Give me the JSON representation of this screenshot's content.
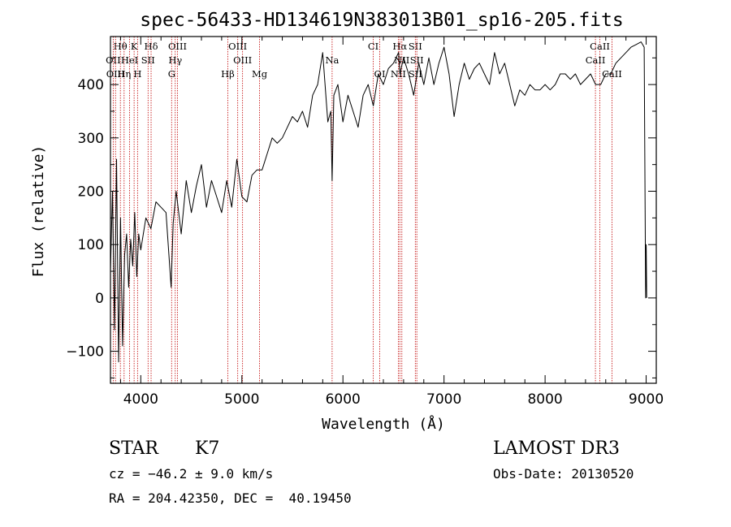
{
  "chart_data": {
    "type": "line",
    "title": "spec-56433-HD134619N383013B01_sp16-205.fits",
    "xlabel": "Wavelength (Å)",
    "ylabel": "Flux (relative)",
    "xlim": [
      3700,
      9100
    ],
    "ylim": [
      -160,
      490
    ],
    "x_ticks": [
      4000,
      5000,
      6000,
      7000,
      8000,
      9000
    ],
    "x_tick_labels": [
      "4000",
      "5000",
      "6000",
      "7000",
      "8000",
      "9000"
    ],
    "y_ticks": [
      -100,
      0,
      100,
      200,
      300,
      400
    ],
    "y_tick_labels": [
      "−100",
      "0",
      "100",
      "200",
      "300",
      "400"
    ],
    "series": [
      {
        "name": "flux",
        "color": "#000000",
        "x": [
          3700,
          3720,
          3740,
          3760,
          3780,
          3800,
          3820,
          3840,
          3860,
          3880,
          3900,
          3920,
          3940,
          3960,
          3980,
          4000,
          4050,
          4100,
          4150,
          4200,
          4250,
          4300,
          4320,
          4350,
          4400,
          4450,
          4500,
          4550,
          4600,
          4650,
          4700,
          4750,
          4800,
          4850,
          4900,
          4950,
          5000,
          5050,
          5100,
          5150,
          5200,
          5250,
          5300,
          5350,
          5400,
          5450,
          5500,
          5550,
          5600,
          5650,
          5700,
          5750,
          5800,
          5850,
          5880,
          5893,
          5910,
          5950,
          6000,
          6050,
          6100,
          6150,
          6200,
          6250,
          6300,
          6350,
          6400,
          6450,
          6500,
          6550,
          6563,
          6600,
          6650,
          6700,
          6750,
          6800,
          6850,
          6900,
          6950,
          7000,
          7050,
          7100,
          7150,
          7200,
          7250,
          7300,
          7350,
          7400,
          7450,
          7500,
          7550,
          7600,
          7650,
          7700,
          7750,
          7800,
          7850,
          7900,
          7950,
          8000,
          8050,
          8100,
          8150,
          8200,
          8250,
          8300,
          8350,
          8400,
          8450,
          8500,
          8550,
          8600,
          8650,
          8700,
          8750,
          8800,
          8850,
          8900,
          8950,
          8980,
          8995,
          9000,
          9005
        ],
        "y": [
          50,
          200,
          -60,
          260,
          -120,
          150,
          -90,
          80,
          120,
          20,
          110,
          60,
          160,
          40,
          120,
          90,
          150,
          130,
          180,
          170,
          160,
          20,
          140,
          200,
          120,
          220,
          160,
          210,
          250,
          170,
          220,
          190,
          160,
          220,
          170,
          260,
          190,
          180,
          230,
          240,
          240,
          270,
          300,
          290,
          300,
          320,
          340,
          330,
          350,
          320,
          380,
          400,
          460,
          330,
          350,
          220,
          380,
          400,
          330,
          380,
          350,
          320,
          380,
          400,
          360,
          420,
          400,
          430,
          440,
          460,
          420,
          450,
          420,
          380,
          440,
          400,
          450,
          400,
          440,
          470,
          420,
          340,
          400,
          440,
          410,
          430,
          440,
          420,
          400,
          460,
          420,
          440,
          400,
          360,
          390,
          380,
          400,
          390,
          390,
          400,
          390,
          400,
          420,
          420,
          410,
          420,
          400,
          410,
          420,
          400,
          400,
          420,
          420,
          440,
          450,
          460,
          470,
          475,
          480,
          470,
          0,
          100,
          0
        ]
      }
    ],
    "line_markers": [
      {
        "label": "Hθ",
        "wavelength": 3798,
        "row": 0
      },
      {
        "label": "K",
        "wavelength": 3934,
        "row": 0
      },
      {
        "label": "Hδ",
        "wavelength": 4102,
        "row": 0
      },
      {
        "label": "OIII",
        "wavelength": 4363,
        "row": 0
      },
      {
        "label": "OIII",
        "wavelength": 4959,
        "row": 0
      },
      {
        "label": "CI",
        "wavelength": 6300,
        "row": 0
      },
      {
        "label": "Hα",
        "wavelength": 6563,
        "row": 0
      },
      {
        "label": "SII",
        "wavelength": 6716,
        "row": 0
      },
      {
        "label": "CaII",
        "wavelength": 8542,
        "row": 0
      },
      {
        "label": "OII",
        "wavelength": 3727,
        "row": 1
      },
      {
        "label": "HeI",
        "wavelength": 3889,
        "row": 1
      },
      {
        "label": "SII",
        "wavelength": 4072,
        "row": 1
      },
      {
        "label": "Hγ",
        "wavelength": 4341,
        "row": 1
      },
      {
        "label": "OIII",
        "wavelength": 5007,
        "row": 1
      },
      {
        "label": "Na",
        "wavelength": 5893,
        "row": 1
      },
      {
        "label": "NII",
        "wavelength": 6583,
        "row": 1
      },
      {
        "label": "SII",
        "wavelength": 6731,
        "row": 1
      },
      {
        "label": "CaII",
        "wavelength": 8498,
        "row": 1
      },
      {
        "label": "OIII",
        "wavelength": 3750,
        "row": 2
      },
      {
        "label": "Hη",
        "wavelength": 3835,
        "row": 2
      },
      {
        "label": "H",
        "wavelength": 3968,
        "row": 2
      },
      {
        "label": "G",
        "wavelength": 4305,
        "row": 2
      },
      {
        "label": "Hβ",
        "wavelength": 4861,
        "row": 2
      },
      {
        "label": "Mg",
        "wavelength": 5175,
        "row": 2
      },
      {
        "label": "OI",
        "wavelength": 6364,
        "row": 2
      },
      {
        "label": "NII",
        "wavelength": 6548,
        "row": 2
      },
      {
        "label": "SII",
        "wavelength": 6716,
        "row": 2
      },
      {
        "label": "CaII",
        "wavelength": 8662,
        "row": 2
      }
    ],
    "marker_line_color": "#c00000"
  },
  "info": {
    "object_type": "STAR",
    "subclass": "K7",
    "survey": "LAMOST DR3",
    "cz": "cz = −46.2 ± 9.0 km/s",
    "obs_date": "Obs-Date: 20130520",
    "coords": "RA = 204.42350, DEC =  40.19450"
  }
}
